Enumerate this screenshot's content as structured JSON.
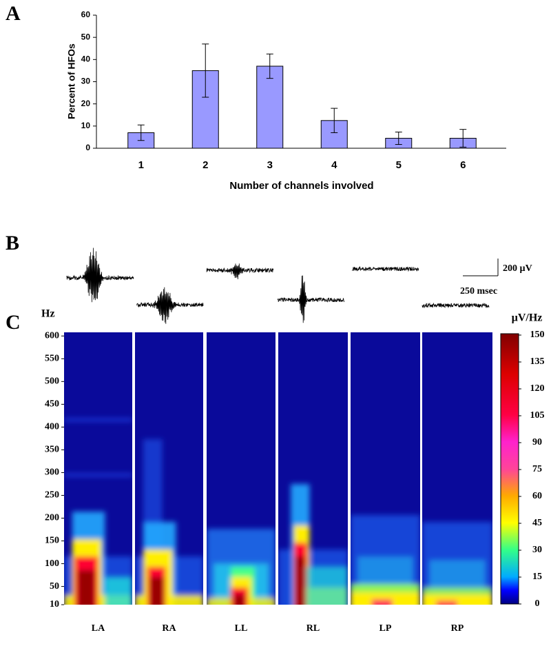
{
  "panels": [
    "A",
    "B",
    "C"
  ],
  "traces": {
    "amplitude_scale": "200 µV",
    "time_scale": "250 msec"
  },
  "chart_data": [
    {
      "type": "bar",
      "ylabel": "Percent of HFOs",
      "xlabel": "Number of channels involved",
      "categories": [
        "1",
        "2",
        "3",
        "4",
        "5",
        "6"
      ],
      "values": [
        7,
        35,
        37,
        12.5,
        4.5,
        4.5
      ],
      "errors": [
        3.5,
        12,
        5.5,
        5.5,
        2.8,
        4
      ],
      "color": "#9999ff",
      "ylim": [
        0,
        60
      ],
      "yticks": [
        0,
        10,
        20,
        30,
        40,
        50,
        60
      ]
    },
    {
      "type": "spectrogram",
      "ylabel": "Hz",
      "categories": [
        "LA",
        "RA",
        "LL",
        "RL",
        "LP",
        "RP"
      ],
      "ylim": [
        10,
        608
      ],
      "yticks": [
        10,
        50,
        100,
        150,
        200,
        250,
        300,
        350,
        400,
        450,
        500,
        550,
        600
      ],
      "colorbar": {
        "label": "µV/Hz",
        "lim": [
          0,
          150
        ],
        "ticks": [
          0,
          15,
          30,
          45,
          60,
          75,
          90,
          105,
          120,
          135,
          150
        ]
      }
    }
  ]
}
